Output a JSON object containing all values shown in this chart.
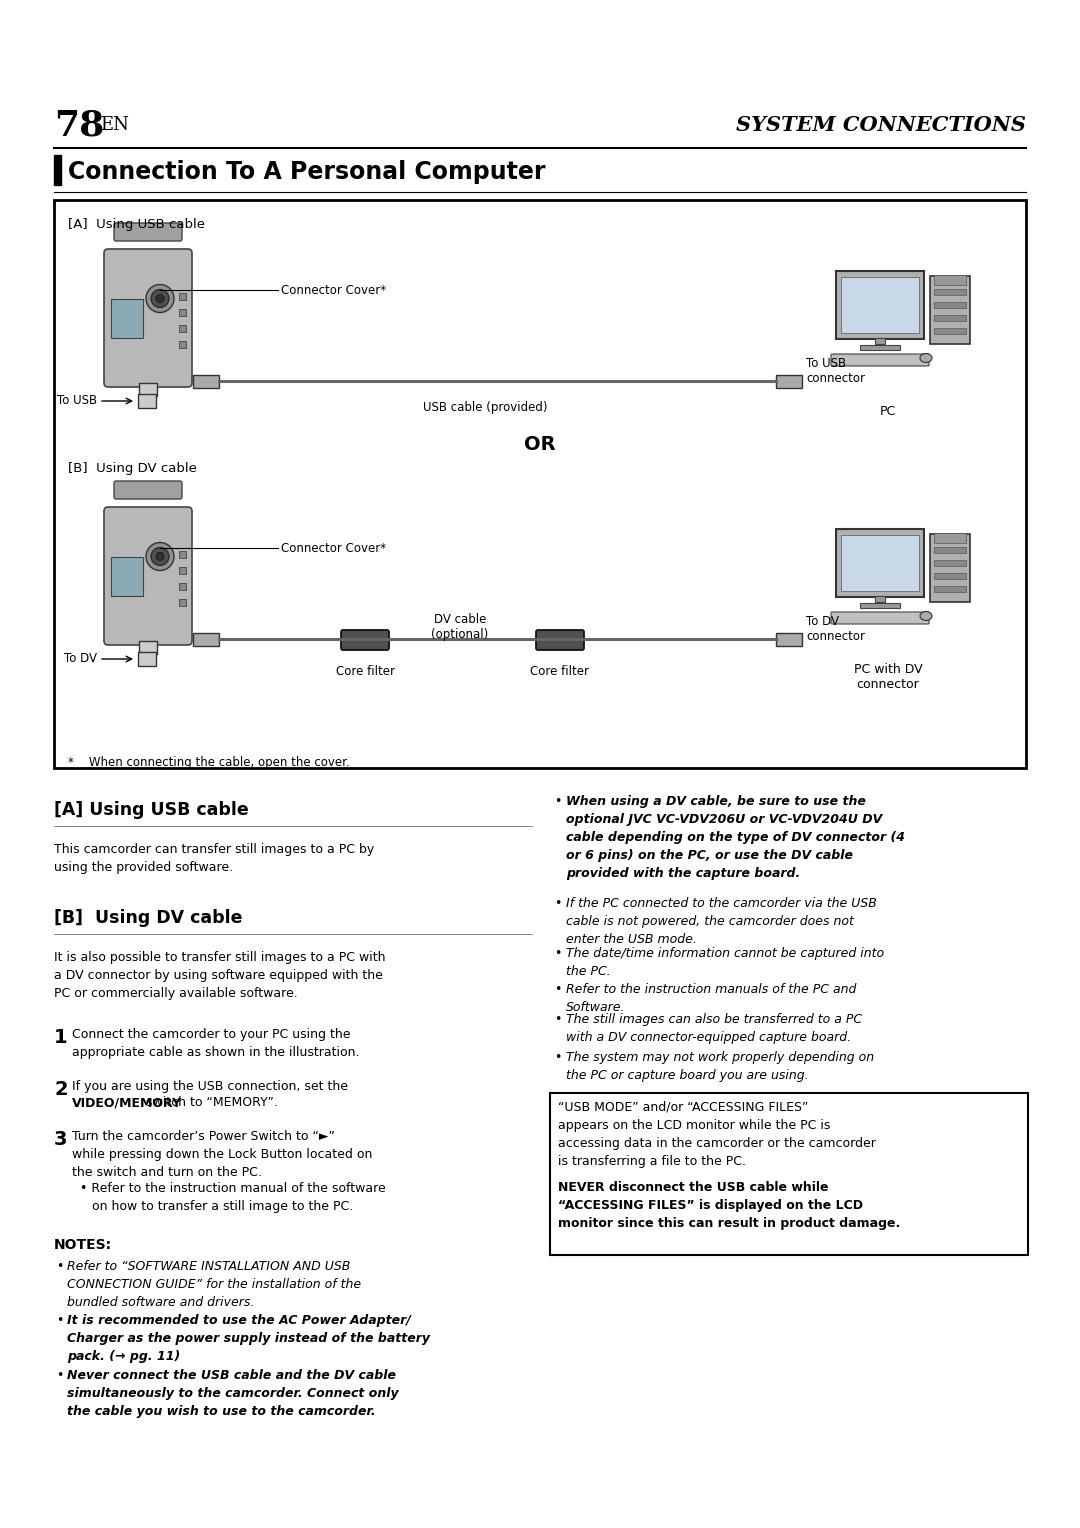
{
  "bg_color": "#ffffff",
  "page_number": "78",
  "header_right": "SYSTEM CONNECTIONS",
  "chapter_title": "Connection To A Personal Computer",
  "diagram": {
    "section_a": "[A]  Using USB cable",
    "section_b": "[B]  Using DV cable",
    "or_text": "OR",
    "footnote": "*    When connecting the cable, open the cover.",
    "usb_connector_cover": "Connector Cover*",
    "usb_to_usb": "To USB",
    "usb_cable_label": "USB cable (provided)",
    "usb_to_connector": "To USB\nconnector",
    "pc_a_label": "PC",
    "dv_connector_cover": "Connector Cover*",
    "dv_to_dv": "To DV",
    "dv_cable_label": "DV cable\n(optional)",
    "dv_to_connector": "To DV\nconnector",
    "core_filter_1": "Core filter",
    "core_filter_2": "Core filter",
    "pc_b_label": "PC with DV\nconnector"
  },
  "left_col": {
    "a_heading": "[A] Using USB cable",
    "a_body": "This camcorder can transfer still images to a PC by\nusing the provided software.",
    "b_heading": "[B]  Using DV cable",
    "b_body": "It is also possible to transfer still images to a PC with\na DV connector by using software equipped with the\nPC or commercially available software.",
    "step1": "Connect the camcorder to your PC using the\nappropriate cable as shown in the illustration.",
    "step2_pre": "If you are using the USB connection, set the",
    "step2_bold": "VIDEO/MEMORY",
    "step2_post": " switch to “MEMORY”.",
    "step3": "Turn the camcorder’s Power Switch to “►”\nwhile pressing down the Lock Button located on\nthe switch and turn on the PC.",
    "step3_sub": "• Refer to the instruction manual of the software\n   on how to transfer a still image to the PC.",
    "notes_heading": "NOTES:",
    "note1": "Refer to “SOFTWARE INSTALLATION AND USB\nCONNECTION GUIDE” for the installation of the\nbundled software and drivers.",
    "note2": "It is recommended to use the AC Power Adapter/\nCharger as the power supply instead of the battery\npack. (→ pg. 11)",
    "note3": "Never connect the USB cable and the DV cable\nsimultaneously to the camcorder. Connect only\nthe cable you wish to use to the camcorder."
  },
  "right_col": {
    "bullet1": "When using a DV cable, be sure to use the\noptional JVC VC-VDV206U or VC-VDV204U DV\ncable depending on the type of DV connector (4\nor 6 pins) on the PC, or use the DV cable\nprovided with the capture board.",
    "bullet2": "If the PC connected to the camcorder via the USB\ncable is not powered, the camcorder does not\nenter the USB mode.",
    "bullet3": "The date/time information cannot be captured into\nthe PC.",
    "bullet4": "Refer to the instruction manuals of the PC and\nSoftware.",
    "bullet5": "The still images can also be transferred to a PC\nwith a DV connector-equipped capture board.",
    "bullet6": "The system may not work properly depending on\nthe PC or capture board you are using.",
    "warning_normal": "“USB MODE” and/or “ACCESSING FILES”\nappears on the LCD monitor while the PC is\naccessing data in the camcorder or the camcorder\nis transferring a file to the PC.",
    "warning_bold": "NEVER disconnect the USB cable while\n“ACCESSING FILES” is displayed on the LCD\nmonitor since this can result in product damage."
  }
}
